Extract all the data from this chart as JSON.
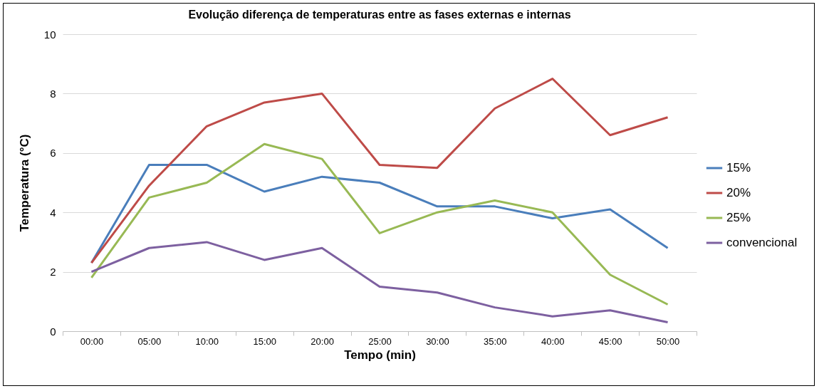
{
  "chart_data": {
    "type": "line",
    "title": "Evolução diferença de temperaturas entre as fases externas e internas",
    "xlabel": "Tempo (min)",
    "ylabel": "Temperatura (°C)",
    "categories": [
      "00:00",
      "05:00",
      "10:00",
      "15:00",
      "20:00",
      "25:00",
      "30:00",
      "35:00",
      "40:00",
      "45:00",
      "50:00"
    ],
    "series": [
      {
        "name": "15%",
        "color": "#4a7ebb",
        "values": [
          2.3,
          5.6,
          5.6,
          4.7,
          5.2,
          5.0,
          4.2,
          4.2,
          3.8,
          4.1,
          2.8
        ]
      },
      {
        "name": "20%",
        "color": "#be4b48",
        "values": [
          2.3,
          4.9,
          6.9,
          7.7,
          8.0,
          5.6,
          5.5,
          7.5,
          8.5,
          6.6,
          7.2
        ]
      },
      {
        "name": "25%",
        "color": "#98b954",
        "values": [
          1.8,
          4.5,
          5.0,
          6.3,
          5.8,
          3.3,
          4.0,
          4.4,
          4.0,
          1.9,
          0.9
        ]
      },
      {
        "name": "convencional",
        "color": "#7d60a0",
        "values": [
          2.0,
          2.8,
          3.0,
          2.4,
          2.8,
          1.5,
          1.3,
          0.8,
          0.5,
          0.7,
          0.3
        ]
      }
    ],
    "ylim": [
      0,
      10
    ],
    "yticks": [
      0,
      2,
      4,
      6,
      8,
      10
    ],
    "grid": "y",
    "legend": "right",
    "marker": "none",
    "line_style": "solid"
  }
}
